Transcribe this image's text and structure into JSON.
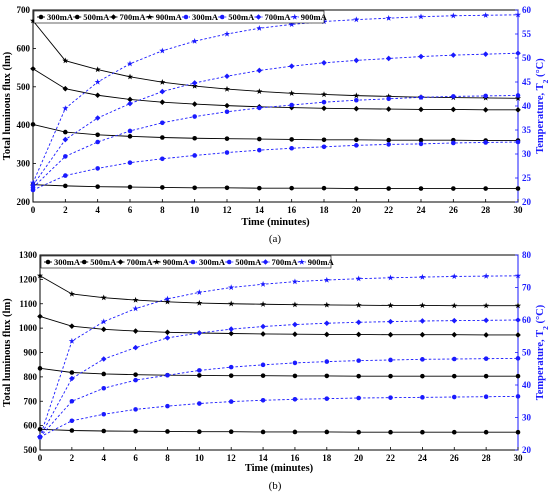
{
  "colors": {
    "black_series": "#000000",
    "blue_series": "#1a1aff",
    "axis": "#000000"
  },
  "chart_data": [
    {
      "type": "line",
      "panel_label": "(a)",
      "xlabel": "Time (minutes)",
      "ylabel": "Total luminous flux (lm)",
      "y2label": "Temperature, T",
      "y2label_sub": "2",
      "y2label_unit": " (°C)",
      "xlim": [
        0,
        30
      ],
      "ylim": [
        200,
        700
      ],
      "y2lim": [
        20,
        60
      ],
      "xticks": [
        0,
        2,
        4,
        6,
        8,
        10,
        12,
        14,
        16,
        18,
        20,
        22,
        24,
        26,
        28,
        30
      ],
      "yticks": [
        200,
        300,
        400,
        500,
        600,
        700
      ],
      "y2ticks": [
        20,
        25,
        30,
        35,
        40,
        45,
        50,
        55,
        60
      ],
      "legend_labels": [
        "300mA",
        "500mA",
        "700mA",
        "900mA",
        "300mA",
        "500mA",
        "700mA",
        "900mA"
      ],
      "x": [
        0,
        2,
        4,
        6,
        8,
        10,
        12,
        14,
        16,
        18,
        20,
        22,
        24,
        26,
        28,
        30
      ],
      "series": [
        {
          "name": "300mA",
          "axis": "left",
          "color": "#000000",
          "marker": "circle",
          "values": [
            245,
            242,
            240,
            239,
            238,
            237,
            237,
            236,
            236,
            236,
            235,
            235,
            235,
            235,
            235,
            235
          ]
        },
        {
          "name": "500mA",
          "axis": "left",
          "color": "#000000",
          "marker": "circle",
          "values": [
            402,
            382,
            375,
            371,
            368,
            366,
            365,
            364,
            363,
            362,
            362,
            361,
            361,
            361,
            360,
            360
          ]
        },
        {
          "name": "700mA",
          "axis": "left",
          "color": "#000000",
          "marker": "diamond",
          "values": [
            547,
            495,
            478,
            467,
            460,
            455,
            451,
            448,
            446,
            444,
            443,
            442,
            441,
            441,
            440,
            440
          ]
        },
        {
          "name": "900mA",
          "axis": "left",
          "color": "#000000",
          "marker": "star",
          "values": [
            672,
            568,
            545,
            526,
            512,
            502,
            494,
            488,
            483,
            480,
            477,
            475,
            473,
            472,
            471,
            470
          ]
        },
        {
          "name": "300mA",
          "axis": "right",
          "color": "#1a1aff",
          "marker": "circle",
          "values": [
            22.5,
            25.5,
            27,
            28.2,
            29,
            29.7,
            30.3,
            30.8,
            31.2,
            31.5,
            31.8,
            32,
            32.1,
            32.3,
            32.4,
            32.5
          ]
        },
        {
          "name": "500mA",
          "axis": "right",
          "color": "#1a1aff",
          "marker": "circle",
          "values": [
            23,
            29.5,
            32.5,
            34.8,
            36.5,
            37.8,
            38.8,
            39.6,
            40.2,
            40.8,
            41.2,
            41.5,
            41.8,
            42,
            42.1,
            42.2
          ]
        },
        {
          "name": "700mA",
          "axis": "right",
          "color": "#1a1aff",
          "marker": "diamond",
          "values": [
            23.5,
            33,
            37.5,
            40.5,
            43,
            44.8,
            46.2,
            47.4,
            48.3,
            49,
            49.5,
            49.9,
            50.3,
            50.6,
            50.8,
            51
          ]
        },
        {
          "name": "900mA",
          "axis": "right",
          "color": "#1a1aff",
          "marker": "star",
          "values": [
            24,
            39.5,
            45,
            48.8,
            51.5,
            53.5,
            55,
            56.2,
            57,
            57.6,
            58,
            58.3,
            58.6,
            58.8,
            58.9,
            59
          ]
        }
      ]
    },
    {
      "type": "line",
      "panel_label": "(b)",
      "xlabel": "Time (minutes)",
      "ylabel": "Total luminous flux (lm)",
      "y2label": "Temperature, T",
      "y2label_sub": "2",
      "y2label_unit": " (°C)",
      "xlim": [
        0,
        30
      ],
      "ylim": [
        500,
        1300
      ],
      "y2lim": [
        20,
        80
      ],
      "xticks": [
        0,
        2,
        4,
        6,
        8,
        10,
        12,
        14,
        16,
        18,
        20,
        22,
        24,
        26,
        28,
        30
      ],
      "yticks": [
        500,
        600,
        700,
        800,
        900,
        1000,
        1100,
        1200,
        1300
      ],
      "y2ticks": [
        20,
        30,
        40,
        50,
        60,
        70,
        80
      ],
      "legend_labels": [
        "300mA",
        "500mA",
        "700mA",
        "900mA",
        "300mA",
        "500mA",
        "700mA",
        "900mA"
      ],
      "x": [
        0,
        2,
        4,
        6,
        8,
        10,
        12,
        14,
        16,
        18,
        20,
        22,
        24,
        26,
        28,
        30
      ],
      "series": [
        {
          "name": "300mA",
          "axis": "left",
          "color": "#000000",
          "marker": "circle",
          "values": [
            585,
            580,
            578,
            577,
            576,
            575,
            575,
            574,
            574,
            574,
            573,
            573,
            573,
            573,
            573,
            573
          ]
        },
        {
          "name": "500mA",
          "axis": "left",
          "color": "#000000",
          "marker": "circle",
          "values": [
            835,
            818,
            812,
            809,
            807,
            806,
            805,
            805,
            804,
            804,
            803,
            803,
            803,
            803,
            803,
            803
          ]
        },
        {
          "name": "700mA",
          "axis": "left",
          "color": "#000000",
          "marker": "diamond",
          "values": [
            1048,
            1008,
            995,
            988,
            983,
            980,
            978,
            976,
            975,
            974,
            974,
            973,
            973,
            973,
            972,
            972
          ]
        },
        {
          "name": "900mA",
          "axis": "left",
          "color": "#000000",
          "marker": "star",
          "values": [
            1215,
            1140,
            1125,
            1115,
            1108,
            1103,
            1100,
            1098,
            1096,
            1095,
            1094,
            1093,
            1093,
            1092,
            1092,
            1092
          ]
        },
        {
          "name": "300mA",
          "axis": "right",
          "color": "#1a1aff",
          "marker": "circle",
          "values": [
            24,
            29,
            31,
            32.5,
            33.5,
            34.3,
            34.9,
            35.3,
            35.6,
            35.8,
            36,
            36.1,
            36.2,
            36.3,
            36.4,
            36.5
          ]
        },
        {
          "name": "500mA",
          "axis": "right",
          "color": "#1a1aff",
          "marker": "circle",
          "values": [
            24,
            35,
            39,
            41.5,
            43,
            44.5,
            45.5,
            46.2,
            46.8,
            47.2,
            47.5,
            47.7,
            47.9,
            48,
            48.1,
            48.2
          ]
        },
        {
          "name": "700mA",
          "axis": "right",
          "color": "#1a1aff",
          "marker": "diamond",
          "values": [
            24,
            42,
            48,
            51.5,
            54.5,
            56,
            57.2,
            58,
            58.6,
            59,
            59.3,
            59.5,
            59.7,
            59.8,
            59.9,
            60
          ]
        },
        {
          "name": "900mA",
          "axis": "right",
          "color": "#1a1aff",
          "marker": "star",
          "values": [
            24,
            53.5,
            59.5,
            63.5,
            66.5,
            68.5,
            70,
            71,
            71.8,
            72.3,
            72.7,
            73,
            73.2,
            73.4,
            73.5,
            73.6
          ]
        }
      ]
    }
  ]
}
